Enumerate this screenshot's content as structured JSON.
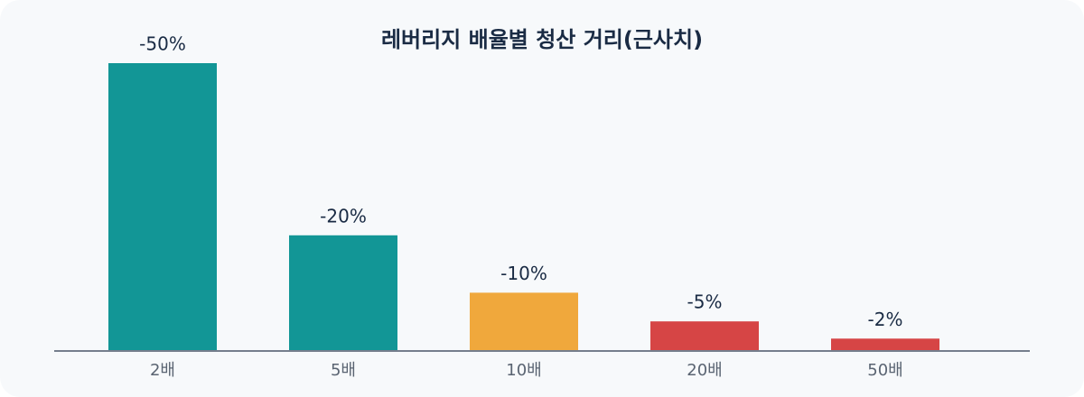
{
  "chart_data": {
    "type": "bar",
    "title": "레버리지 배율별 청산 거리(근사치)",
    "categories": [
      "2배",
      "5배",
      "10배",
      "20배",
      "50배"
    ],
    "values": [
      -50,
      -20,
      -10,
      -5,
      -2
    ],
    "value_labels": [
      "-50%",
      "-20%",
      "-10%",
      "-5%",
      "-2%"
    ],
    "colors": [
      "#129696",
      "#129696",
      "#f0a83c",
      "#d64545",
      "#d64545"
    ],
    "ylim": [
      0,
      -50
    ]
  }
}
